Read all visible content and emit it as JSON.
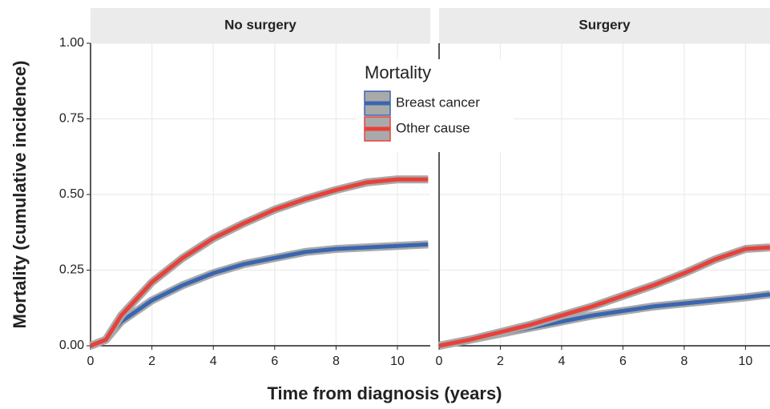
{
  "x_label": "Time from diagnosis (years)",
  "y_label": "Mortality (cumulative incidence)",
  "legend_title": "Mortality",
  "chart_data": [
    {
      "type": "line",
      "title": "No surgery",
      "x": [
        0,
        0.5,
        1,
        2,
        3,
        4,
        5,
        6,
        7,
        8,
        9,
        10,
        11
      ],
      "series": [
        {
          "name": "Breast cancer",
          "color": "#3a66b0",
          "values": [
            0,
            0.02,
            0.08,
            0.15,
            0.2,
            0.24,
            0.27,
            0.29,
            0.31,
            0.32,
            0.325,
            0.33,
            0.335
          ]
        },
        {
          "name": "Other cause",
          "color": "#e8413a",
          "values": [
            0,
            0.02,
            0.1,
            0.21,
            0.29,
            0.355,
            0.405,
            0.45,
            0.485,
            0.515,
            0.54,
            0.55,
            0.55
          ]
        }
      ],
      "xlim": [
        0,
        11.07
      ],
      "ylim": [
        0,
        1
      ],
      "xticks": [
        0,
        2,
        4,
        6,
        8,
        10
      ],
      "yticks": [
        {
          "value": 0,
          "label": "0.00"
        },
        {
          "value": 0.25,
          "label": "0.25"
        },
        {
          "value": 0.5,
          "label": "0.50"
        },
        {
          "value": 0.75,
          "label": "0.75"
        },
        {
          "value": 1,
          "label": "1.00"
        }
      ],
      "grid": true
    },
    {
      "type": "line",
      "title": "Surgery",
      "x": [
        0,
        1,
        2,
        3,
        4,
        5,
        6,
        7,
        8,
        9,
        10,
        10.8
      ],
      "series": [
        {
          "name": "Breast cancer",
          "color": "#3a66b0",
          "values": [
            0,
            0.02,
            0.04,
            0.06,
            0.08,
            0.1,
            0.115,
            0.13,
            0.14,
            0.15,
            0.16,
            0.17
          ]
        },
        {
          "name": "Other cause",
          "color": "#e8413a",
          "values": [
            0,
            0.02,
            0.045,
            0.07,
            0.1,
            0.13,
            0.165,
            0.2,
            0.24,
            0.285,
            0.32,
            0.325
          ]
        }
      ],
      "xlim": [
        0,
        10.8
      ],
      "ylim": [
        0,
        1
      ],
      "xticks": [
        0,
        2,
        4,
        6,
        8,
        10
      ],
      "yticks": [
        0,
        0.25,
        0.5,
        0.75,
        1
      ],
      "grid": true
    }
  ]
}
